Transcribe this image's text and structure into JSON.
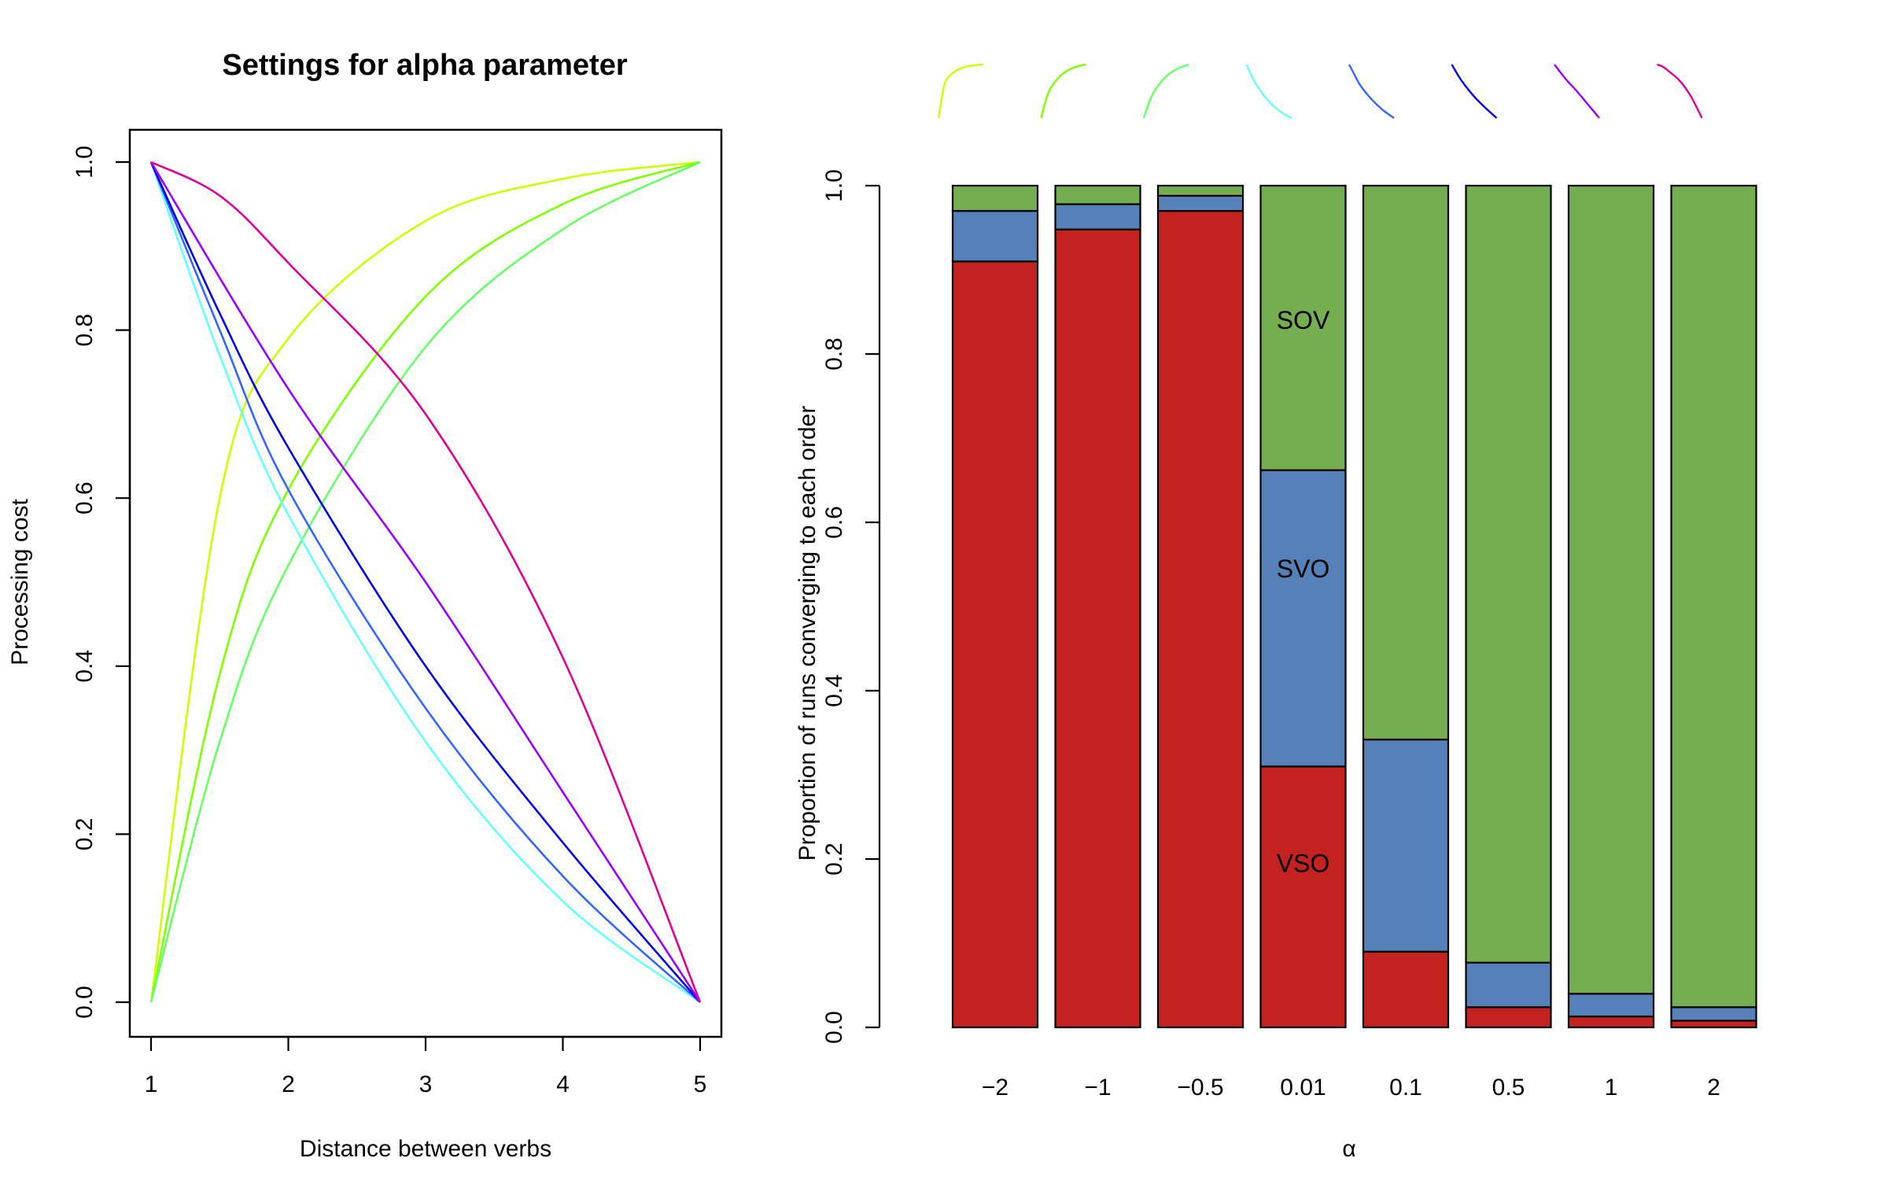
{
  "chart_data": [
    {
      "type": "line",
      "title": "Settings for alpha parameter",
      "xlabel": "Distance between verbs",
      "ylabel": "Processing cost",
      "xlim": [
        1,
        5
      ],
      "ylim": [
        0,
        1
      ],
      "xticks": [
        "1",
        "2",
        "3",
        "4",
        "5"
      ],
      "yticks": [
        "0.0",
        "0.2",
        "0.4",
        "0.6",
        "0.8",
        "1.0"
      ],
      "grid": false,
      "legend": "none",
      "series": [
        {
          "color": "#ccff00",
          "direction": "increasing",
          "points": [
            [
              1,
              0
            ],
            [
              1.5,
              0.6
            ],
            [
              2,
              0.79
            ],
            [
              3,
              0.93
            ],
            [
              4,
              0.98
            ],
            [
              5,
              1
            ]
          ]
        },
        {
          "color": "#7fff00",
          "direction": "increasing",
          "points": [
            [
              1,
              0
            ],
            [
              1.5,
              0.39
            ],
            [
              2,
              0.61
            ],
            [
              3,
              0.84
            ],
            [
              4,
              0.95
            ],
            [
              5,
              1
            ]
          ]
        },
        {
          "color": "#66ff66",
          "direction": "increasing",
          "points": [
            [
              1,
              0
            ],
            [
              1.5,
              0.31
            ],
            [
              2,
              0.52
            ],
            [
              3,
              0.78
            ],
            [
              4,
              0.92
            ],
            [
              5,
              1
            ]
          ]
        },
        {
          "color": "#66ffff",
          "direction": "decreasing",
          "points": [
            [
              1,
              1
            ],
            [
              1.5,
              0.77
            ],
            [
              2,
              0.58
            ],
            [
              3,
              0.31
            ],
            [
              4,
              0.12
            ],
            [
              5,
              0
            ]
          ]
        },
        {
          "color": "#3366ff",
          "direction": "decreasing",
          "points": [
            [
              1,
              1
            ],
            [
              1.5,
              0.8
            ],
            [
              2,
              0.61
            ],
            [
              3,
              0.35
            ],
            [
              4,
              0.15
            ],
            [
              5,
              0
            ]
          ]
        },
        {
          "color": "#0000ee",
          "direction": "decreasing",
          "points": [
            [
              1,
              1
            ],
            [
              1.5,
              0.82
            ],
            [
              2,
              0.66
            ],
            [
              3,
              0.4
            ],
            [
              4,
              0.19
            ],
            [
              5,
              0
            ]
          ]
        },
        {
          "color": "#9900ff",
          "direction": "decreasing",
          "points": [
            [
              1,
              1
            ],
            [
              2,
              0.73
            ],
            [
              3,
              0.5
            ],
            [
              4,
              0.25
            ],
            [
              5,
              0
            ]
          ]
        },
        {
          "color": "#dd0099",
          "direction": "decreasing",
          "points": [
            [
              1,
              1
            ],
            [
              1.5,
              0.96
            ],
            [
              2,
              0.88
            ],
            [
              3,
              0.7
            ],
            [
              4,
              0.41
            ],
            [
              5,
              0
            ]
          ]
        }
      ]
    },
    {
      "type": "bar",
      "stacked": true,
      "title": "",
      "xlabel": "α",
      "ylabel": "Proportion of runs converging to each order",
      "ylim": [
        0,
        1
      ],
      "yticks": [
        "0.0",
        "0.2",
        "0.4",
        "0.6",
        "0.8",
        "1.0"
      ],
      "categories": [
        "−2",
        "−1",
        "−0.5",
        "0.01",
        "0.1",
        "0.5",
        "1",
        "2"
      ],
      "grid": false,
      "series": [
        {
          "color": "#c42121",
          "values": [
            0.91,
            0.948,
            0.97,
            0.31,
            0.09,
            0.024,
            0.013,
            0.008
          ]
        },
        {
          "color": "#5680b8",
          "values": [
            0.06,
            0.03,
            0.018,
            0.352,
            0.252,
            0.053,
            0.027,
            0.016
          ]
        },
        {
          "color": "#75ad51",
          "values": [
            0.03,
            0.022,
            0.012,
            0.338,
            0.658,
            0.923,
            0.96,
            0.976
          ]
        }
      ],
      "annotations": [
        {
          "text": "SOV",
          "category": "0.01",
          "y": 0.84
        },
        {
          "text": "SVO",
          "category": "0.01",
          "y": 0.545
        },
        {
          "text": "VSO",
          "category": "0.01",
          "y": 0.195
        }
      ],
      "top_curve_icons": [
        {
          "category": "−2",
          "color": "#ccff00",
          "direction": "increasing"
        },
        {
          "category": "−1",
          "color": "#7fff00",
          "direction": "increasing"
        },
        {
          "category": "−0.5",
          "color": "#66ff66",
          "direction": "increasing"
        },
        {
          "category": "0.01",
          "color": "#66ffff",
          "direction": "decreasing"
        },
        {
          "category": "0.1",
          "color": "#3366ff",
          "direction": "decreasing"
        },
        {
          "category": "0.5",
          "color": "#0000ee",
          "direction": "decreasing"
        },
        {
          "category": "1",
          "color": "#9900ff",
          "direction": "decreasing"
        },
        {
          "category": "2",
          "color": "#dd0099",
          "direction": "decreasing"
        }
      ]
    }
  ]
}
